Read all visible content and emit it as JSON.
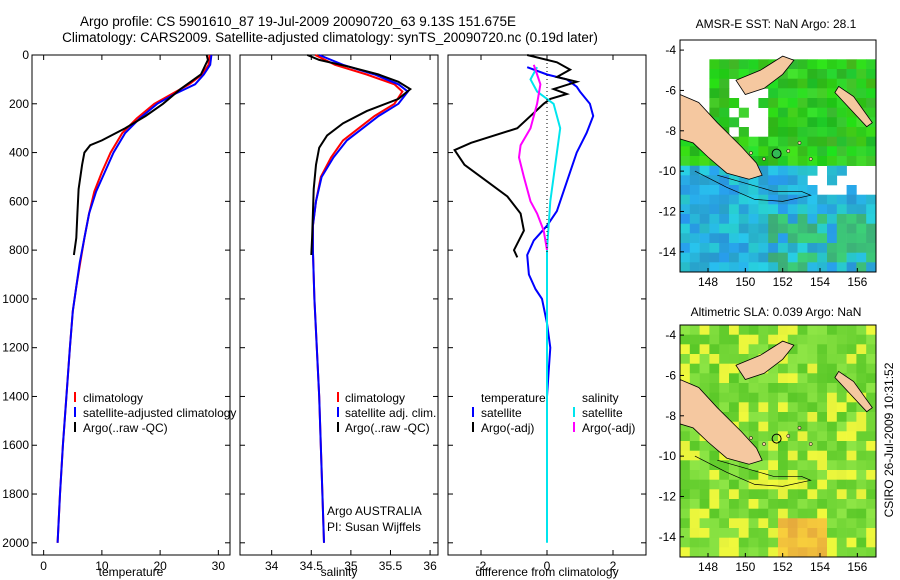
{
  "header": {
    "title_line1": "Argo profile: CS 5901610_87 19-Jul-2009 20090720_63 9.13S 151.675E",
    "title_line2": "Climatology: CARS2009. Satellite-adjusted climatology: synTS_20090720.nc (0.19d later)"
  },
  "stamp": "CSIRO 26-Jul-2009 10:31:52",
  "colors": {
    "climatology": "#ff0000",
    "satellite": "#0000ff",
    "argo": "#000000",
    "salinity_satellite": "#00e5ee",
    "salinity_argo": "#ff00ff",
    "land": "#f5c8a0",
    "sst_warm": "#33cc33",
    "sst_cool": "#22aadd",
    "sla_base": "#99dd44"
  },
  "chart_data": [
    {
      "id": "temperature",
      "type": "line",
      "xlabel": "temperature",
      "xlim": [
        -2,
        32
      ],
      "ylim": [
        2050,
        0
      ],
      "xticks": [
        0,
        10,
        20,
        30
      ],
      "yticks": [
        0,
        200,
        400,
        600,
        800,
        1000,
        1200,
        1400,
        1600,
        1800,
        2000
      ],
      "legend": {
        "position": "bottom-right",
        "entries": [
          "climatology",
          "satellite-adjusted climatology",
          "Argo(..raw -QC)"
        ]
      },
      "series": [
        {
          "name": "climatology",
          "color": "#ff0000",
          "points": [
            [
              28.5,
              0
            ],
            [
              28.3,
              40
            ],
            [
              27.2,
              80
            ],
            [
              25.0,
              120
            ],
            [
              22.0,
              160
            ],
            [
              19.0,
              200
            ],
            [
              16.0,
              260
            ],
            [
              13.5,
              320
            ],
            [
              11.5,
              400
            ],
            [
              10.0,
              480
            ],
            [
              8.7,
              560
            ],
            [
              7.8,
              650
            ],
            [
              7.0,
              750
            ],
            [
              6.3,
              850
            ],
            [
              5.6,
              950
            ],
            [
              5.0,
              1050
            ],
            [
              4.5,
              1200
            ],
            [
              3.9,
              1400
            ],
            [
              3.3,
              1600
            ],
            [
              2.8,
              1800
            ],
            [
              2.4,
              2000
            ]
          ]
        },
        {
          "name": "satellite-adjusted climatology",
          "color": "#0000ff",
          "points": [
            [
              28.8,
              0
            ],
            [
              28.6,
              40
            ],
            [
              27.5,
              80
            ],
            [
              26.0,
              120
            ],
            [
              22.5,
              160
            ],
            [
              19.5,
              200
            ],
            [
              16.5,
              260
            ],
            [
              14.0,
              320
            ],
            [
              12.0,
              400
            ],
            [
              10.5,
              480
            ],
            [
              9.0,
              560
            ],
            [
              7.8,
              650
            ],
            [
              7.0,
              750
            ],
            [
              6.2,
              850
            ],
            [
              5.6,
              950
            ],
            [
              5.0,
              1050
            ],
            [
              4.5,
              1200
            ],
            [
              3.9,
              1400
            ],
            [
              3.3,
              1600
            ],
            [
              2.8,
              1800
            ],
            [
              2.4,
              2000
            ]
          ]
        },
        {
          "name": "Argo(..raw -QC)",
          "color": "#000000",
          "points": [
            [
              28.0,
              0
            ],
            [
              28.2,
              20
            ],
            [
              27.8,
              40
            ],
            [
              27.0,
              80
            ],
            [
              23.5,
              140
            ],
            [
              20.5,
              200
            ],
            [
              17.5,
              250
            ],
            [
              14.0,
              300
            ],
            [
              10.0,
              350
            ],
            [
              8.0,
              370
            ],
            [
              7.0,
              400
            ],
            [
              6.6,
              450
            ],
            [
              6.0,
              550
            ],
            [
              5.8,
              650
            ],
            [
              5.6,
              750
            ],
            [
              5.2,
              820
            ]
          ]
        }
      ]
    },
    {
      "id": "salinity",
      "type": "line",
      "xlabel": "salinity",
      "xlim": [
        33.6,
        36.1
      ],
      "ylim": [
        2050,
        0
      ],
      "xticks": [
        34,
        34.5,
        35,
        35.5,
        36
      ],
      "legend": {
        "position": "bottom-right",
        "entries": [
          "climatology",
          "satellite adj. clim.",
          "Argo(..raw -QC)"
        ]
      },
      "annotation_line1": "Argo AUSTRALIA",
      "annotation_line2": "PI: Susan Wijffels",
      "series": [
        {
          "name": "climatology",
          "color": "#ff0000",
          "points": [
            [
              34.55,
              0
            ],
            [
              34.8,
              40
            ],
            [
              35.2,
              80
            ],
            [
              35.55,
              120
            ],
            [
              35.65,
              150
            ],
            [
              35.55,
              200
            ],
            [
              35.3,
              250
            ],
            [
              35.1,
              300
            ],
            [
              34.9,
              350
            ],
            [
              34.75,
              420
            ],
            [
              34.62,
              500
            ],
            [
              34.56,
              600
            ],
            [
              34.52,
              700
            ],
            [
              34.52,
              800
            ],
            [
              34.54,
              1000
            ],
            [
              34.57,
              1200
            ],
            [
              34.6,
              1400
            ],
            [
              34.62,
              1600
            ],
            [
              34.64,
              1800
            ],
            [
              34.66,
              2000
            ]
          ]
        },
        {
          "name": "satellite adj. clim.",
          "color": "#0000ff",
          "points": [
            [
              34.6,
              0
            ],
            [
              34.9,
              40
            ],
            [
              35.3,
              80
            ],
            [
              35.6,
              120
            ],
            [
              35.72,
              150
            ],
            [
              35.6,
              200
            ],
            [
              35.35,
              250
            ],
            [
              35.15,
              300
            ],
            [
              34.95,
              350
            ],
            [
              34.78,
              420
            ],
            [
              34.63,
              500
            ],
            [
              34.56,
              600
            ],
            [
              34.52,
              700
            ],
            [
              34.52,
              800
            ],
            [
              34.54,
              1000
            ],
            [
              34.57,
              1200
            ],
            [
              34.6,
              1400
            ],
            [
              34.62,
              1600
            ],
            [
              34.64,
              1800
            ],
            [
              34.66,
              2000
            ]
          ]
        },
        {
          "name": "Argo(..raw -QC)",
          "color": "#000000",
          "points": [
            [
              34.45,
              0
            ],
            [
              34.6,
              20
            ],
            [
              35.0,
              50
            ],
            [
              35.35,
              80
            ],
            [
              35.6,
              110
            ],
            [
              35.75,
              140
            ],
            [
              35.6,
              180
            ],
            [
              35.2,
              230
            ],
            [
              34.9,
              280
            ],
            [
              34.7,
              330
            ],
            [
              34.6,
              380
            ],
            [
              34.56,
              450
            ],
            [
              34.53,
              550
            ],
            [
              34.52,
              650
            ],
            [
              34.51,
              750
            ],
            [
              34.5,
              820
            ]
          ]
        }
      ]
    },
    {
      "id": "difference",
      "type": "line",
      "xlabel": "difference from climatology",
      "xlim": [
        -3,
        3
      ],
      "ylim": [
        2050,
        0
      ],
      "xticks": [
        -2,
        0,
        2
      ],
      "legend": {
        "position": "bottom",
        "temperature_title": "temperature",
        "salinity_title": "salinity",
        "entries": [
          "satellite",
          "Argo(-adj)",
          "satellite",
          "Argo(-adj)"
        ]
      },
      "series": [
        {
          "name": "temperature satellite",
          "color": "#0000ff",
          "points": [
            [
              -0.6,
              50
            ],
            [
              0.0,
              80
            ],
            [
              0.6,
              100
            ],
            [
              0.9,
              130
            ],
            [
              1.0,
              150
            ],
            [
              1.3,
              200
            ],
            [
              1.4,
              250
            ],
            [
              1.2,
              320
            ],
            [
              0.9,
              400
            ],
            [
              0.7,
              480
            ],
            [
              0.5,
              560
            ],
            [
              0.3,
              640
            ],
            [
              0.0,
              700
            ],
            [
              -0.4,
              760
            ],
            [
              -0.6,
              820
            ],
            [
              -0.55,
              900
            ],
            [
              -0.35,
              960
            ],
            [
              -0.15,
              1000
            ],
            [
              0.0,
              1100
            ],
            [
              0.1,
              1200
            ],
            [
              0.05,
              1300
            ],
            [
              0.0,
              1400
            ]
          ]
        },
        {
          "name": "temperature Argo(-adj)",
          "color": "#000000",
          "points": [
            [
              -0.6,
              0
            ],
            [
              0.3,
              30
            ],
            [
              0.7,
              60
            ],
            [
              0.3,
              90
            ],
            [
              0.9,
              110
            ],
            [
              0.2,
              140
            ],
            [
              0.6,
              160
            ],
            [
              0.1,
              180
            ],
            [
              -0.1,
              200
            ],
            [
              -0.9,
              300
            ],
            [
              -2.3,
              360
            ],
            [
              -2.8,
              390
            ],
            [
              -2.5,
              450
            ],
            [
              -1.8,
              520
            ],
            [
              -1.2,
              580
            ],
            [
              -0.8,
              650
            ],
            [
              -0.7,
              720
            ],
            [
              -1.0,
              800
            ],
            [
              -0.9,
              830
            ]
          ]
        },
        {
          "name": "salinity satellite",
          "color": "#00e5ee",
          "points": [
            [
              -0.3,
              50
            ],
            [
              -0.5,
              100
            ],
            [
              -0.3,
              150
            ],
            [
              0.2,
              200
            ],
            [
              0.4,
              300
            ],
            [
              0.3,
              400
            ],
            [
              0.2,
              500
            ],
            [
              0.1,
              600
            ],
            [
              0.05,
              700
            ],
            [
              0.0,
              800
            ],
            [
              0.0,
              1000
            ],
            [
              0.0,
              1200
            ],
            [
              0.0,
              1400
            ],
            [
              0.0,
              1600
            ],
            [
              0.0,
              1800
            ],
            [
              0.0,
              2000
            ]
          ]
        },
        {
          "name": "salinity Argo(-adj)",
          "color": "#ff00ff",
          "points": [
            [
              -0.4,
              40
            ],
            [
              -0.3,
              80
            ],
            [
              -0.2,
              120
            ],
            [
              -0.3,
              200
            ],
            [
              -0.5,
              300
            ],
            [
              -0.8,
              370
            ],
            [
              -0.85,
              420
            ],
            [
              -0.7,
              500
            ],
            [
              -0.5,
              600
            ],
            [
              -0.3,
              650
            ],
            [
              -0.1,
              720
            ],
            [
              0.0,
              800
            ]
          ]
        },
        {
          "name": "Argo ref (dotted)",
          "color": "#000000",
          "points": [
            [
              0.0,
              0
            ],
            [
              0.0,
              820
            ]
          ]
        }
      ]
    },
    {
      "id": "sst_map",
      "type": "heatmap",
      "title": "AMSR-E SST: NaN Argo: 28.1",
      "xlim": [
        146.5,
        157
      ],
      "ylim": [
        -15,
        -3.5
      ],
      "xticks": [
        148,
        150,
        152,
        154,
        156
      ],
      "yticks": [
        -4,
        -6,
        -8,
        -10,
        -12,
        -14
      ],
      "argo_point": {
        "lon": 151.675,
        "lat": -9.13
      }
    },
    {
      "id": "sla_map",
      "type": "heatmap",
      "title": "Altimetric SLA: 0.039 Argo: NaN",
      "xlim": [
        146.5,
        157
      ],
      "ylim": [
        -15,
        -3.5
      ],
      "xticks": [
        148,
        150,
        152,
        154,
        156
      ],
      "yticks": [
        -4,
        -6,
        -8,
        -10,
        -12,
        -14
      ],
      "argo_point": {
        "lon": 151.675,
        "lat": -9.13
      }
    }
  ]
}
